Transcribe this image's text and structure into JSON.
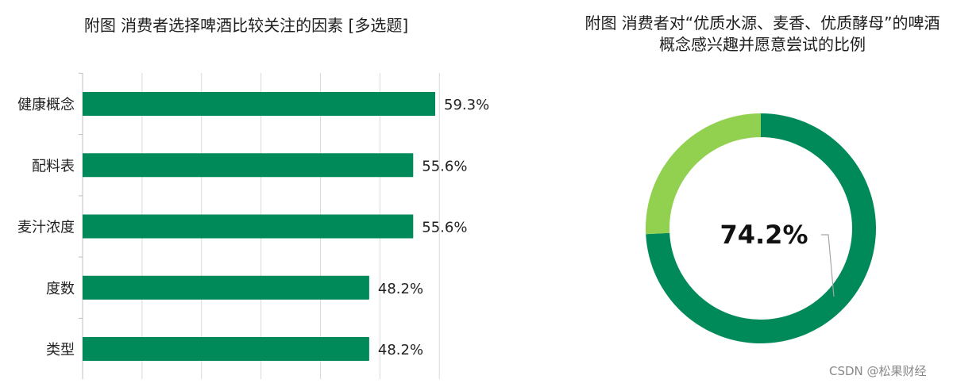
{
  "chart_data": [
    {
      "type": "bar",
      "orientation": "horizontal",
      "title": "附图 消费者选择啤酒比较关注的因素 [多选题]",
      "categories": [
        "健康概念",
        "配料表",
        "麦汁浓度",
        "度数",
        "类型"
      ],
      "values": [
        59.3,
        55.6,
        55.6,
        48.2,
        48.2
      ],
      "data_labels": [
        "59.3%",
        "55.6%",
        "55.6%",
        "48.2%",
        "48.2%"
      ],
      "value_unit": "%",
      "xlim": [
        0,
        60
      ],
      "grid": true,
      "bar_color": "#008a5a"
    },
    {
      "type": "pie",
      "variant": "donut",
      "title": "附图 消费者对“优质水源、麦香、优质酵母”的啤酒概念感兴趣并愿意尝试的比例",
      "slices": [
        {
          "value": 74.2,
          "color": "#008a5a"
        },
        {
          "value": 25.8,
          "color": "#92d050"
        }
      ],
      "center_label": "74.2%"
    }
  ],
  "watermark": "CSDN @松果财经"
}
